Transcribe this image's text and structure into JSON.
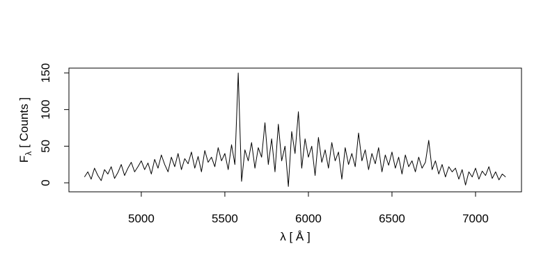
{
  "chart_data": {
    "type": "line",
    "xlabel": "λ [ Å ]",
    "ylabel_main": "F",
    "ylabel_subscript": "λ",
    "ylabel_unit": "[ Counts ]",
    "xlim": [
      4567,
      7275
    ],
    "ylim": [
      -12.3,
      156.6
    ],
    "xticks": [
      5000,
      5500,
      6000,
      6500,
      7000
    ],
    "yticks": [
      0,
      50,
      100,
      150
    ],
    "x": [
      4660,
      4680,
      4700,
      4720,
      4740,
      4760,
      4780,
      4800,
      4820,
      4840,
      4860,
      4880,
      4900,
      4920,
      4940,
      4960,
      4980,
      5000,
      5020,
      5040,
      5060,
      5080,
      5100,
      5120,
      5140,
      5160,
      5180,
      5200,
      5220,
      5240,
      5260,
      5280,
      5300,
      5320,
      5340,
      5360,
      5380,
      5400,
      5420,
      5440,
      5460,
      5480,
      5500,
      5520,
      5540,
      5560,
      5580,
      5600,
      5620,
      5640,
      5660,
      5680,
      5700,
      5720,
      5740,
      5760,
      5780,
      5800,
      5820,
      5840,
      5860,
      5880,
      5900,
      5920,
      5940,
      5960,
      5980,
      6000,
      6020,
      6040,
      6060,
      6080,
      6100,
      6120,
      6140,
      6160,
      6180,
      6200,
      6220,
      6240,
      6260,
      6280,
      6300,
      6320,
      6340,
      6360,
      6380,
      6400,
      6420,
      6440,
      6460,
      6480,
      6500,
      6520,
      6540,
      6560,
      6580,
      6600,
      6620,
      6640,
      6660,
      6680,
      6700,
      6720,
      6740,
      6760,
      6780,
      6800,
      6820,
      6840,
      6860,
      6880,
      6900,
      6920,
      6940,
      6960,
      6980,
      7000,
      7020,
      7040,
      7060,
      7080,
      7100,
      7120,
      7140,
      7160,
      7180
    ],
    "series": [
      {
        "color": "#000000",
        "values": [
          8,
          15,
          5,
          20,
          10,
          3,
          18,
          12,
          22,
          6,
          14,
          25,
          10,
          20,
          28,
          15,
          22,
          30,
          18,
          27,
          12,
          32,
          20,
          38,
          25,
          15,
          35,
          22,
          40,
          18,
          33,
          26,
          42,
          20,
          36,
          15,
          44,
          28,
          35,
          22,
          48,
          30,
          40,
          18,
          52,
          25,
          150,
          2,
          45,
          30,
          55,
          20,
          48,
          35,
          82,
          25,
          60,
          15,
          80,
          30,
          50,
          -5,
          70,
          40,
          97,
          20,
          60,
          35,
          50,
          10,
          62,
          28,
          45,
          20,
          55,
          30,
          42,
          5,
          48,
          25,
          40,
          22,
          68,
          30,
          45,
          18,
          40,
          26,
          48,
          15,
          38,
          24,
          42,
          20,
          35,
          12,
          38,
          22,
          30,
          15,
          35,
          20,
          28,
          58,
          18,
          30,
          12,
          25,
          8,
          22,
          15,
          20,
          5,
          18,
          -3,
          15,
          8,
          20,
          5,
          16,
          10,
          22,
          6,
          15,
          4,
          12,
          8
        ]
      }
    ]
  }
}
